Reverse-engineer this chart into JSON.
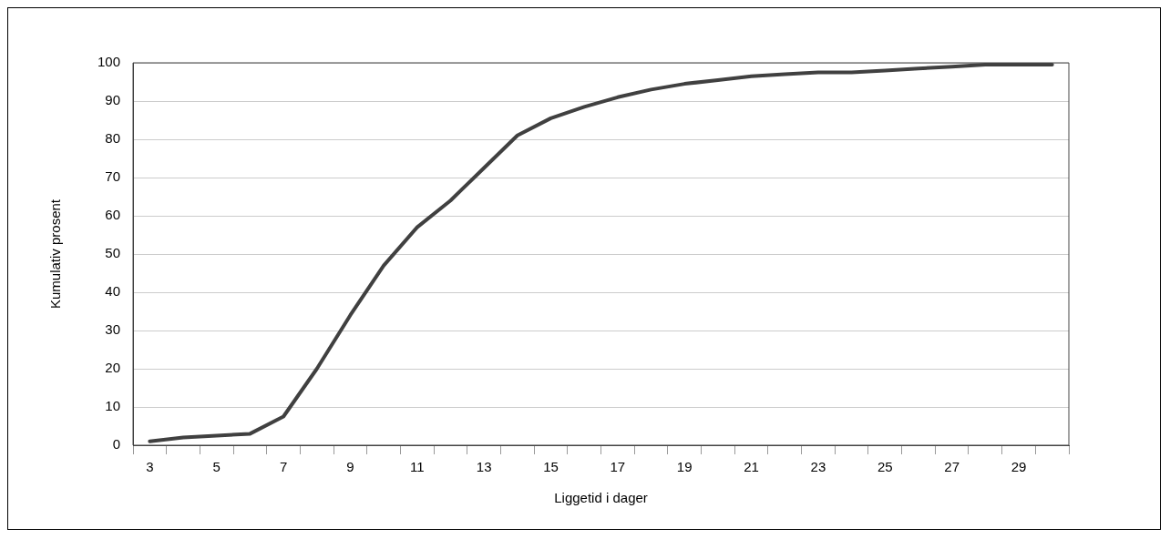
{
  "chart_data": {
    "type": "line",
    "xlabel": "Liggetid i dager",
    "ylabel": "Kumulativ prosent",
    "categories": [
      "3",
      null,
      "5",
      null,
      "7",
      null,
      "9",
      null,
      "11",
      null,
      "13",
      null,
      "15",
      null,
      "17",
      null,
      "19",
      null,
      "21",
      null,
      "23",
      null,
      "25",
      null,
      "27",
      null,
      "29",
      null
    ],
    "series": [
      {
        "color": "#404040",
        "values": [
          1,
          2,
          2.5,
          3,
          7.5,
          20,
          34,
          47,
          57,
          64,
          72.5,
          81,
          85.5,
          88.5,
          91,
          93,
          94.5,
          95.5,
          96.5,
          97,
          97.5,
          97.5,
          98,
          98.5,
          99,
          99.5,
          99.5,
          99.5
        ]
      }
    ],
    "ylim": [
      0,
      100
    ],
    "yticks": [
      0,
      10,
      20,
      30,
      40,
      50,
      60,
      70,
      80,
      90,
      100
    ],
    "grid": "y",
    "legend": false,
    "marker": "none",
    "line_style": "solid"
  }
}
